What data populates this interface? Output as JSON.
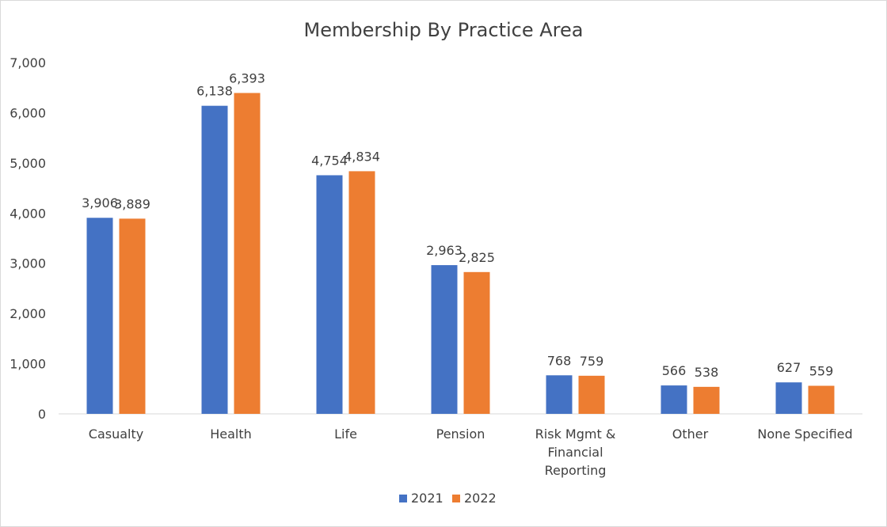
{
  "chart_data": {
    "type": "bar",
    "title": "Membership By Practice Area",
    "categories": [
      [
        "Casualty"
      ],
      [
        "Health"
      ],
      [
        "Life"
      ],
      [
        "Pension"
      ],
      [
        "Risk Mgmt &",
        "Financial",
        "Reporting"
      ],
      [
        "Other"
      ],
      [
        "None Specified"
      ]
    ],
    "series": [
      {
        "name": "2021",
        "color": "#4472C4",
        "values": [
          3906,
          6138,
          4754,
          2963,
          768,
          566,
          627
        ]
      },
      {
        "name": "2022",
        "color": "#ED7D31",
        "values": [
          3889,
          6393,
          4834,
          2825,
          759,
          538,
          559
        ]
      }
    ],
    "y_ticks": [
      "0",
      "1,000",
      "2,000",
      "3,000",
      "4,000",
      "5,000",
      "6,000",
      "7,000"
    ],
    "ylim": [
      0,
      7000
    ],
    "grid": false,
    "legend_position": "bottom",
    "data_labels": true
  }
}
